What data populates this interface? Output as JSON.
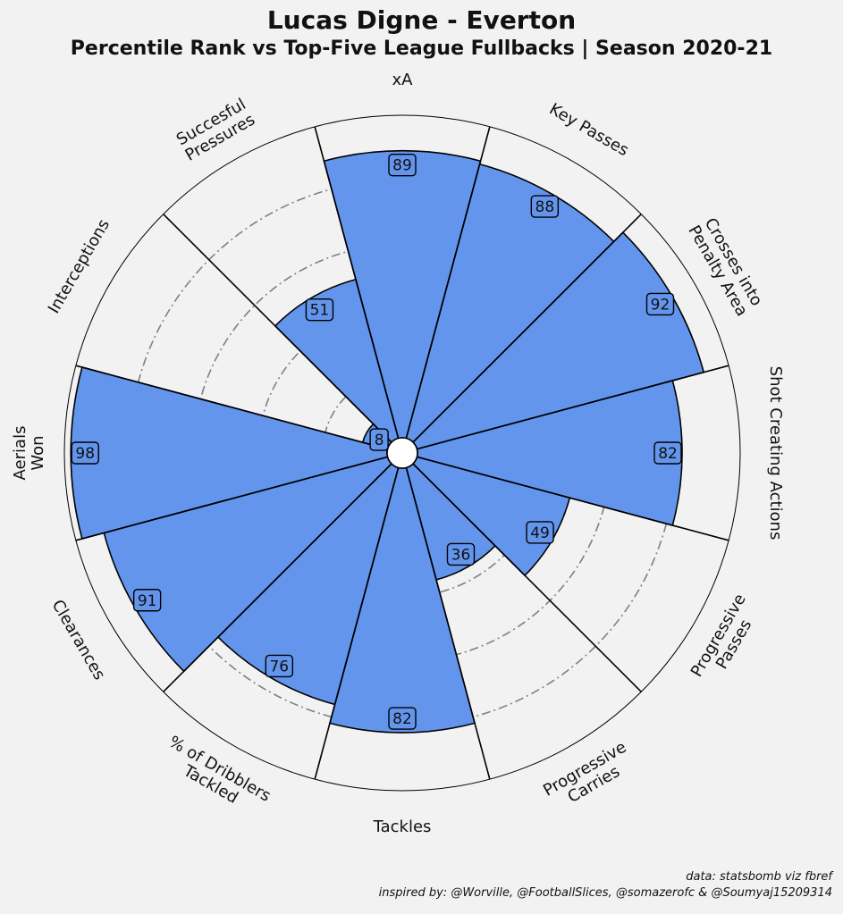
{
  "header": {
    "title": "Lucas Digne - Everton",
    "subtitle": "Percentile Rank vs Top-Five League Fullbacks | Season 2020-21"
  },
  "credits": {
    "line1": "data: statsbomb viz fbref",
    "line2": "inspired by: @Worville, @FootballSlices, @somazerofc & @Soumyaj15209314"
  },
  "chart_data": {
    "type": "polar-bar",
    "title": "Lucas Digne - Everton",
    "subtitle": "Percentile Rank vs Top-Five League Fullbacks | Season 2020-21",
    "rlim": [
      0,
      100
    ],
    "grid": true,
    "categories": [
      [
        "xA"
      ],
      [
        "Key Passes"
      ],
      [
        "Crosses into",
        "Penalty Area"
      ],
      [
        "Shot Creating Actions"
      ],
      [
        "Progressive",
        "Passes"
      ],
      [
        "Progressive",
        "Carries"
      ],
      [
        "Tackles"
      ],
      [
        "% of Dribblers",
        "Tackled"
      ],
      [
        "Clearances"
      ],
      [
        "Aerials",
        "Won"
      ],
      [
        "Interceptions"
      ],
      [
        "Succesful",
        "Pressures"
      ]
    ],
    "values": [
      89,
      88,
      92,
      82,
      49,
      36,
      82,
      76,
      91,
      98,
      8,
      51
    ],
    "colors": {
      "bar": "#6495ED",
      "background": "#f2f2f2",
      "edge": "#000000",
      "grid": "#808080"
    }
  }
}
